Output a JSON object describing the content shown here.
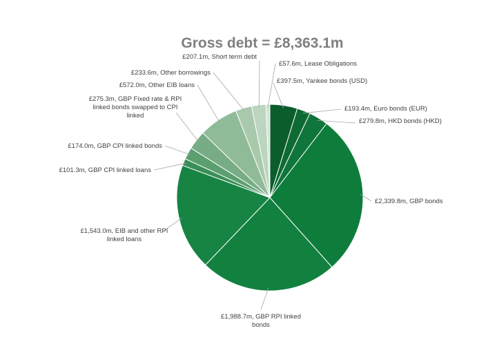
{
  "chart_data": {
    "type": "pie",
    "title": "Gross debt = £8,363.1m",
    "slices": [
      {
        "name": "Yankee bonds (USD)",
        "value": 397.5,
        "label": "£397.5m, Yankee bonds (USD)",
        "color": "#0b5d2c"
      },
      {
        "name": "Euro bonds (EUR)",
        "value": 193.4,
        "label": "£193.4m, Euro bonds (EUR)",
        "color": "#0e6a33"
      },
      {
        "name": "HKD bonds (HKD)",
        "value": 279.8,
        "label": "£279.8m, HKD bonds (HKD)",
        "color": "#10753a"
      },
      {
        "name": "GBP bonds",
        "value": 2339.8,
        "label": "£2,339.8m, GBP bonds",
        "color": "#0e7d3c"
      },
      {
        "name": "GBP RPI linked bonds",
        "value": 1988.7,
        "label": [
          "£1,988.7m, GBP RPI linked",
          "bonds"
        ],
        "color": "#128140"
      },
      {
        "name": "EIB and other RPI linked loans",
        "value": 1543.0,
        "label": [
          "£1,543.0m, EIB and other RPI",
          "linked loans"
        ],
        "color": "#178444"
      },
      {
        "name": "GBP CPI linked loans",
        "value": 101.3,
        "label": "£101.3m, GBP CPI linked loans",
        "color": "#3a8f58"
      },
      {
        "name": "GBP CPI linked bonds",
        "value": 174.0,
        "label": "£174.0m, GBP CPI linked bonds",
        "color": "#5c9f6f"
      },
      {
        "name": "GBP Fixed rate & RPI linked bonds swapped to CPI linked",
        "value": 275.3,
        "label": [
          "£275.3m, GBP Fixed rate & RPI",
          "linked bonds swapped to CPI",
          "linked"
        ],
        "color": "#78ac87"
      },
      {
        "name": "Other EIB loans",
        "value": 572.0,
        "label": "£572.0m, Other EIB loans",
        "color": "#90bb98"
      },
      {
        "name": "Other borrowings",
        "value": 233.6,
        "label": "£233.6m, Other borrowings",
        "color": "#a9c9ad"
      },
      {
        "name": "Short term debt",
        "value": 207.1,
        "label": "£207.1m, Short term debt",
        "color": "#bcd5bf"
      },
      {
        "name": "Lease Obligations",
        "value": 57.6,
        "label": "£57.6m, Lease Obligations",
        "color": "#d3e3d4"
      }
    ]
  }
}
